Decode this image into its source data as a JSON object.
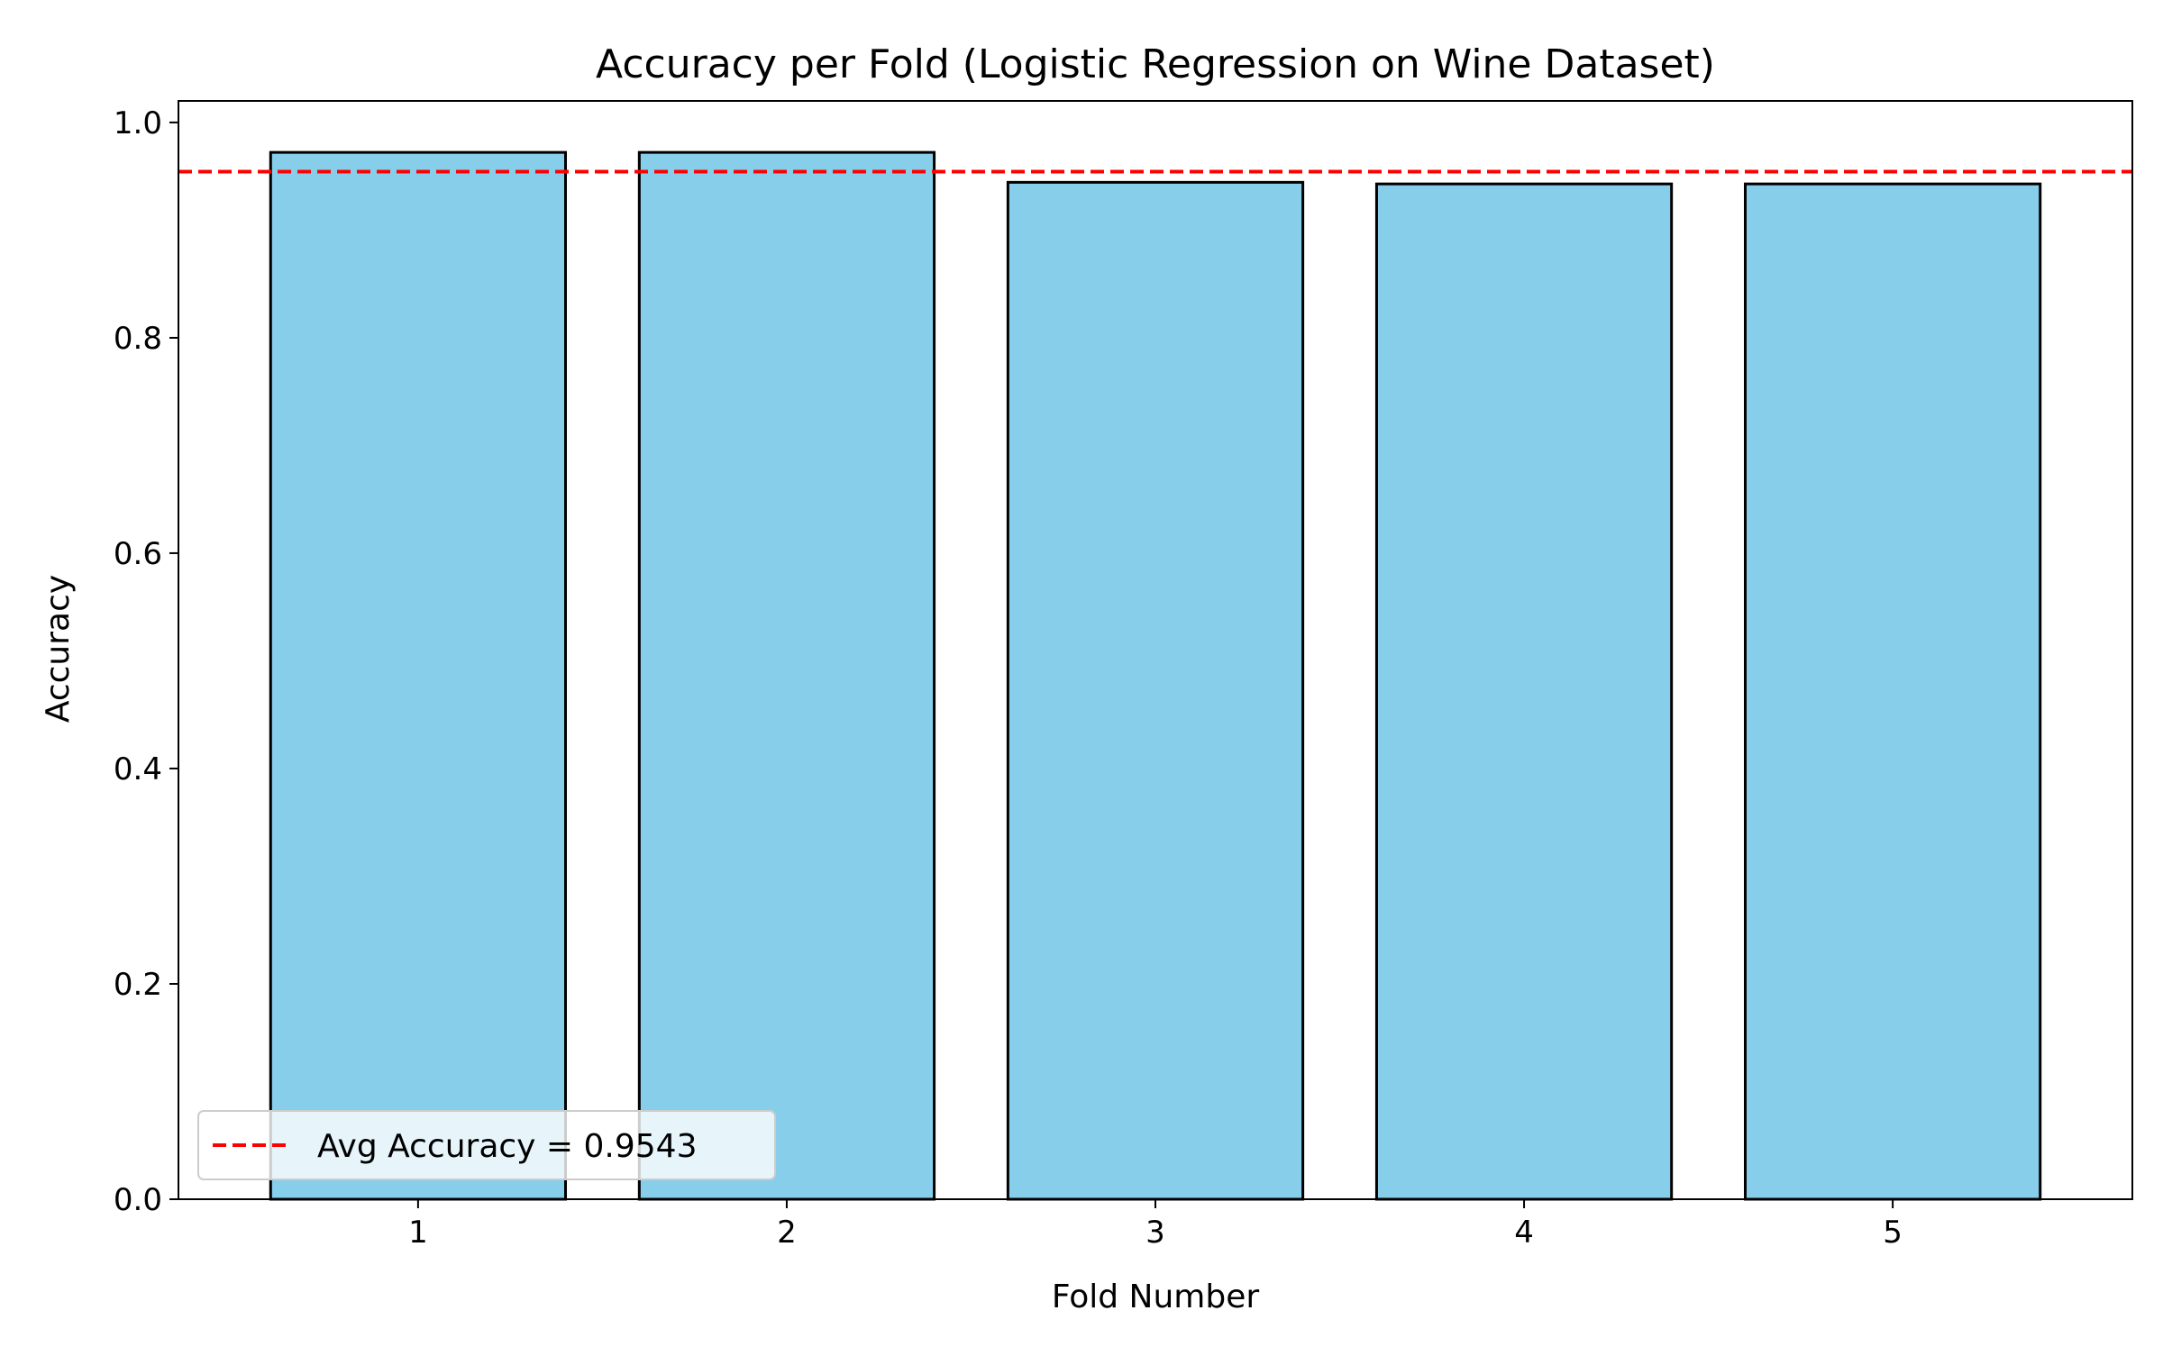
{
  "chart_data": {
    "type": "bar",
    "title": "Accuracy per Fold (Logistic Regression on Wine Dataset)",
    "xlabel": "Fold Number",
    "ylabel": "Accuracy",
    "categories": [
      "1",
      "2",
      "3",
      "4",
      "5"
    ],
    "values": [
      0.9722,
      0.9722,
      0.9444,
      0.9429,
      0.9429
    ],
    "ylim": [
      0,
      1.02
    ],
    "xlim": [
      0.35,
      5.65
    ],
    "yticks": [
      0.0,
      0.2,
      0.4,
      0.6,
      0.8,
      1.0
    ],
    "ytick_labels": [
      "0.0",
      "0.2",
      "0.4",
      "0.6",
      "0.8",
      "1.0"
    ],
    "grid": false,
    "bar_color": "#87ceeb",
    "bar_edge_color": "#000000",
    "reference_line": {
      "value": 0.9543,
      "color": "#ff0000",
      "style": "dashed",
      "label": "Avg Accuracy = 0.9543"
    },
    "legend": {
      "placement": "lower-left",
      "entries": [
        "Avg Accuracy = 0.9543"
      ]
    }
  }
}
